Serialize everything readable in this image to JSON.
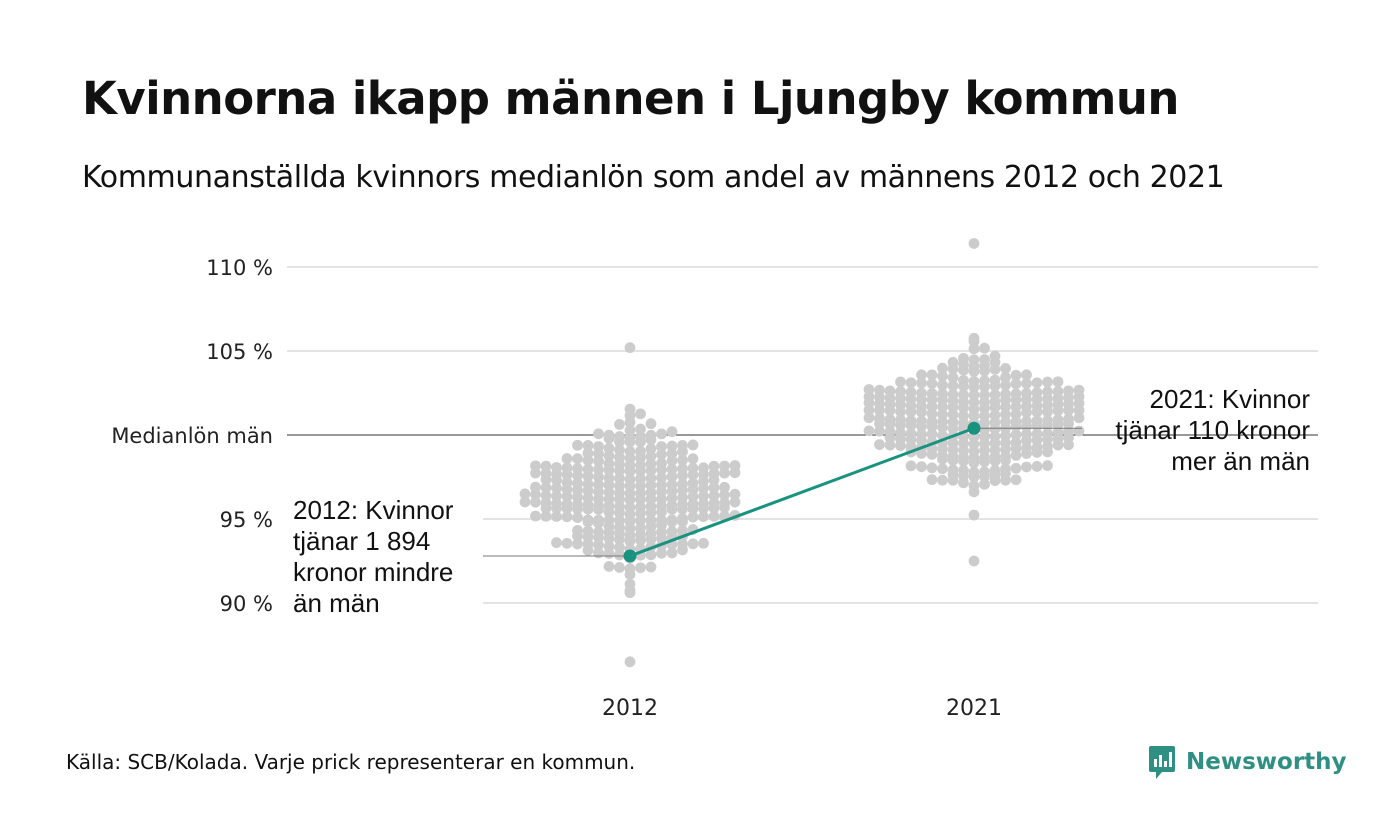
{
  "title": "Kvinnorna ikapp männen i Ljungby kommun",
  "subtitle": "Kommunanställda kvinnors medianlön som andel av männens 2012 och 2021",
  "source": "Källa: SCB/Kolada. Varje prick representerar en kommun.",
  "brand": {
    "name": "Newsworthy",
    "icon": "newsworthy-logo-icon"
  },
  "colors": {
    "highlight": "#19927f",
    "dots": "#cccccc",
    "grid": "#e3e3e3",
    "reference": "#333333",
    "brand": "#2f8f83"
  },
  "chart_data": {
    "type": "scatter",
    "subtype": "beeswarm",
    "categories": [
      "2012",
      "2021"
    ],
    "ylim": [
      86.5,
      111.5
    ],
    "y_ticks": [
      {
        "value": 110,
        "label": "110 %"
      },
      {
        "value": 105,
        "label": "105 %"
      },
      {
        "value": 100,
        "label": "Medianlön män"
      },
      {
        "value": 95,
        "label": "95 %"
      },
      {
        "value": 90,
        "label": "90 %"
      }
    ],
    "reference_line": {
      "value": 100,
      "label": "Medianlön män"
    },
    "grid": true,
    "highlight_series": {
      "name": "Ljungby kommun",
      "values": [
        92.8,
        100.4
      ]
    },
    "annotations": [
      {
        "category": "2012",
        "lines": [
          "2012: Kvinnor",
          "tjänar 1 894",
          "kronor mindre",
          "än män"
        ]
      },
      {
        "category": "2021",
        "lines": [
          "2021: Kvinnor",
          "tjänar 110 kronor",
          "mer än män"
        ]
      }
    ],
    "swarm": {
      "description_per_category": [
        {
          "category": "2012",
          "n": 290,
          "median": 96.6,
          "min": 86.5,
          "max": 105.2
        },
        {
          "category": "2021",
          "n": 290,
          "median": 101.0,
          "min": 92.5,
          "max": 111.4
        }
      ]
    }
  }
}
